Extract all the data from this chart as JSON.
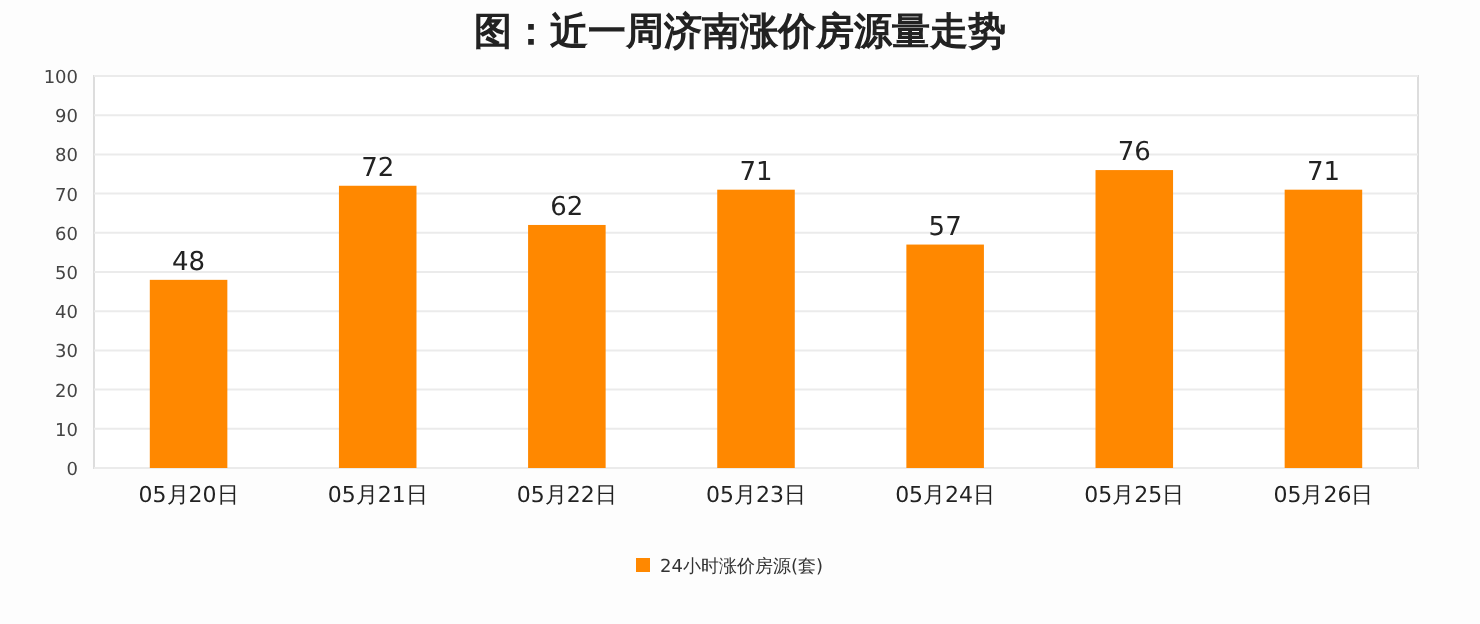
{
  "chart_data": {
    "type": "bar",
    "title": "图：近一周济南涨价房源量走势",
    "categories": [
      "05月20日",
      "05月21日",
      "05月22日",
      "05月23日",
      "05月24日",
      "05月25日",
      "05月26日"
    ],
    "series": [
      {
        "name": "24小时涨价房源(套)",
        "color": "#ff8800",
        "values": [
          48,
          72,
          62,
          71,
          57,
          76,
          71
        ]
      }
    ],
    "ylim": [
      0,
      100
    ],
    "yticks": [
      0,
      10,
      20,
      30,
      40,
      50,
      60,
      70,
      80,
      90,
      100
    ],
    "data_labels": true,
    "grid": "y",
    "legend": "bottom"
  }
}
